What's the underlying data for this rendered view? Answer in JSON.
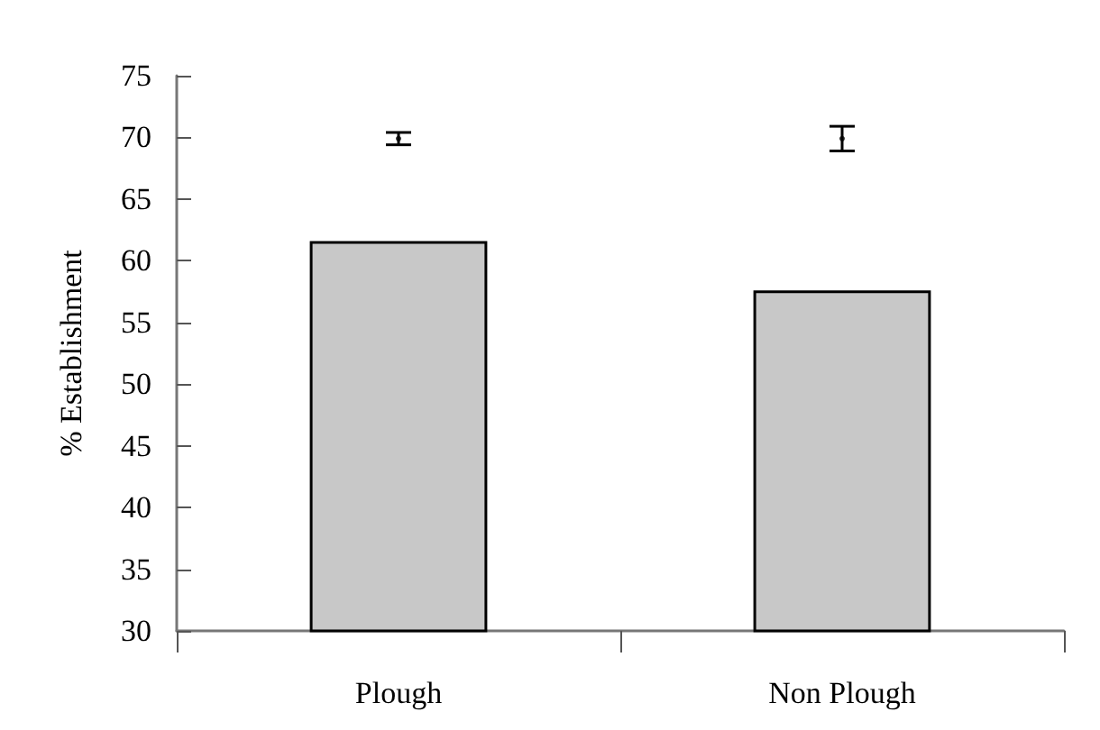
{
  "chart_data": {
    "type": "bar",
    "ylabel": "% Establishment",
    "categories": [
      "Plough",
      "Non Plough"
    ],
    "series": [
      {
        "color": "#c8c8c8",
        "values": [
          61.6,
          57.6
        ]
      },
      {
        "type": "scatter",
        "color": "#000000",
        "x": [
          "Plough",
          "Non Plough"
        ],
        "values": [
          69.9,
          69.9
        ],
        "errors": [
          0.5,
          1.0
        ]
      }
    ],
    "ylim": [
      30,
      75
    ],
    "yticks": [
      30,
      35,
      40,
      45,
      50,
      55,
      60,
      65,
      70,
      75
    ],
    "grid": false
  }
}
